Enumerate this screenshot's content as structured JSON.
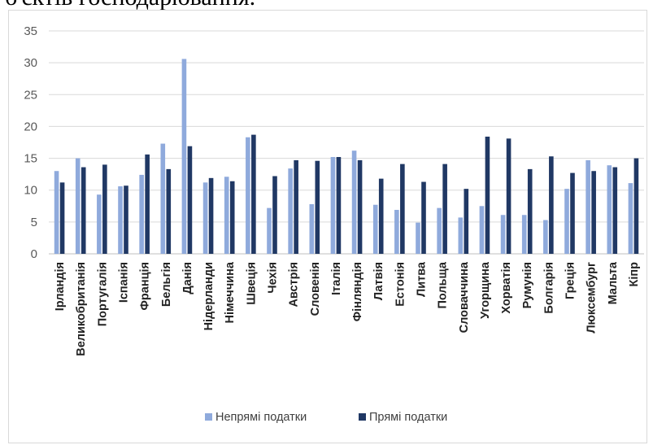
{
  "header_text": "б'єктів господарювання.",
  "chart_data": {
    "type": "bar",
    "title": "",
    "xlabel": "",
    "ylabel": "",
    "ylim": [
      0,
      35
    ],
    "yticks": [
      "0",
      "5",
      "10",
      "15",
      "20",
      "25",
      "30",
      "35"
    ],
    "grid": true,
    "legend_position": "bottom",
    "categories": [
      "Ірландія",
      "Великобританія",
      "Португалія",
      "Іспанія",
      "Франція",
      "Бельгія",
      "Данія",
      "Нідерланди",
      "Німеччина",
      "Швеція",
      "Чехія",
      "Австрія",
      "Словенія",
      "Італія",
      "Фінляндія",
      "Латвія",
      "Естонія",
      "Литва",
      "Польща",
      "Словаччина",
      "Угорщина",
      "Хорватія",
      "Румунія",
      "Болгарія",
      "Греція",
      "Люксембург",
      "Мальта",
      "Кіпр"
    ],
    "series": [
      {
        "name": "Непрямі податки",
        "color": "#8faadc",
        "values": [
          13.0,
          15.0,
          9.3,
          10.6,
          12.4,
          17.3,
          30.6,
          11.2,
          12.1,
          18.3,
          7.2,
          13.4,
          7.8,
          15.2,
          16.2,
          7.7,
          6.9,
          4.9,
          7.2,
          5.7,
          7.5,
          6.1,
          6.1,
          5.3,
          10.2,
          14.7,
          13.9,
          11.1
        ]
      },
      {
        "name": "Прямі податки",
        "color": "#203864",
        "values": [
          11.2,
          13.6,
          14.0,
          10.7,
          15.6,
          13.3,
          16.9,
          11.9,
          11.4,
          18.7,
          12.2,
          14.7,
          14.6,
          15.2,
          14.7,
          11.8,
          14.1,
          11.3,
          14.1,
          10.2,
          18.4,
          18.1,
          13.3,
          15.3,
          12.7,
          13.0,
          13.6,
          15.0
        ]
      }
    ]
  }
}
